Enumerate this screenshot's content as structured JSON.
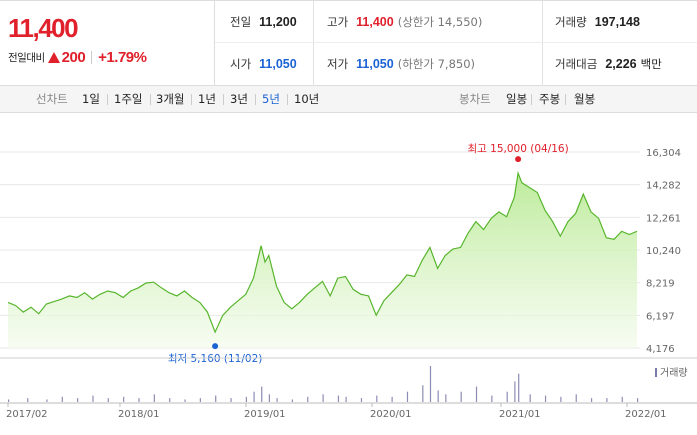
{
  "summary": {
    "price": "11,400",
    "change_label": "전일대비",
    "change_value": "200",
    "change_pct": "+1.79%",
    "colors": {
      "up": "#e0202b",
      "down": "#1b63d4"
    }
  },
  "stats": {
    "prev_close": {
      "label": "전일",
      "value": "11,200"
    },
    "high": {
      "label": "고가",
      "value": "11,400",
      "sub": "(상한가 14,550)"
    },
    "volume": {
      "label": "거래량",
      "value": "197,148"
    },
    "open": {
      "label": "시가",
      "value": "11,050"
    },
    "low": {
      "label": "저가",
      "value": "11,050",
      "sub": "(하한가 7,850)"
    },
    "trade_amount": {
      "label": "거래대금",
      "value": "2,226",
      "unit": "백만"
    }
  },
  "tabs": {
    "line_label": "선차트",
    "line_periods": [
      "1일",
      "1주일",
      "3개월",
      "1년",
      "3년",
      "5년",
      "10년"
    ],
    "active_period": "5년",
    "candle_label": "봉차트",
    "candle_periods": [
      "일봉",
      "주봉",
      "월봉"
    ]
  },
  "chart_data": {
    "type": "area",
    "y_ticks": [
      "16,304",
      "14,282",
      "12,261",
      "10,240",
      "8,219",
      "6,197",
      "4,176"
    ],
    "ylim": [
      4176,
      16304
    ],
    "x_ticks": [
      "2017/02",
      "2018/01",
      "2019/01",
      "2020/01",
      "2021/01",
      "2022/01"
    ],
    "max_annotation": "최고 15,000 (04/16)",
    "min_annotation": "최저 5,160 (11/02)",
    "volume_legend": "거래량",
    "area_color": "#8fd66a",
    "series": [
      {
        "values": [
          [
            0,
            7000
          ],
          [
            2,
            6800
          ],
          [
            4,
            6400
          ],
          [
            6,
            6700
          ],
          [
            8,
            6300
          ],
          [
            10,
            6900
          ],
          [
            12,
            7050
          ],
          [
            14,
            7200
          ],
          [
            16,
            7400
          ],
          [
            18,
            7300
          ],
          [
            20,
            7600
          ],
          [
            22,
            7200
          ],
          [
            24,
            7500
          ],
          [
            26,
            7700
          ],
          [
            28,
            7600
          ],
          [
            30,
            7300
          ],
          [
            32,
            7700
          ],
          [
            34,
            7900
          ],
          [
            36,
            8200
          ],
          [
            38,
            8250
          ],
          [
            40,
            7900
          ],
          [
            42,
            7600
          ],
          [
            44,
            7400
          ],
          [
            46,
            7700
          ],
          [
            48,
            7300
          ],
          [
            50,
            7000
          ],
          [
            52,
            6400
          ],
          [
            54,
            5160
          ],
          [
            56,
            6200
          ],
          [
            58,
            6700
          ],
          [
            60,
            7100
          ],
          [
            62,
            7500
          ],
          [
            64,
            8500
          ],
          [
            66,
            10500
          ],
          [
            67,
            9500
          ],
          [
            68,
            9900
          ],
          [
            70,
            8000
          ],
          [
            72,
            7000
          ],
          [
            74,
            6600
          ],
          [
            76,
            7000
          ],
          [
            78,
            7500
          ],
          [
            80,
            7900
          ],
          [
            82,
            8300
          ],
          [
            84,
            7400
          ],
          [
            86,
            8500
          ],
          [
            88,
            8600
          ],
          [
            90,
            7800
          ],
          [
            92,
            7500
          ],
          [
            94,
            7400
          ],
          [
            96,
            6200
          ],
          [
            98,
            7100
          ],
          [
            100,
            7600
          ],
          [
            102,
            8100
          ],
          [
            104,
            8700
          ],
          [
            106,
            8600
          ],
          [
            108,
            9600
          ],
          [
            110,
            10400
          ],
          [
            112,
            9100
          ],
          [
            114,
            9900
          ],
          [
            116,
            10300
          ],
          [
            118,
            10400
          ],
          [
            120,
            11300
          ],
          [
            122,
            12000
          ],
          [
            124,
            11500
          ],
          [
            126,
            12200
          ],
          [
            128,
            12600
          ],
          [
            130,
            12300
          ],
          [
            132,
            13500
          ],
          [
            133,
            15000
          ],
          [
            134,
            14400
          ],
          [
            136,
            14100
          ],
          [
            138,
            13800
          ],
          [
            140,
            12700
          ],
          [
            142,
            12000
          ],
          [
            144,
            11100
          ],
          [
            146,
            12000
          ],
          [
            148,
            12500
          ],
          [
            150,
            13700
          ],
          [
            152,
            12600
          ],
          [
            154,
            12200
          ],
          [
            156,
            11000
          ],
          [
            158,
            10900
          ],
          [
            160,
            11400
          ],
          [
            162,
            11200
          ],
          [
            164,
            11400
          ]
        ]
      },
      {
        "name": "거래량",
        "values": [
          [
            0,
            2
          ],
          [
            5,
            3
          ],
          [
            10,
            2
          ],
          [
            14,
            4
          ],
          [
            18,
            3
          ],
          [
            22,
            5
          ],
          [
            26,
            3
          ],
          [
            30,
            4
          ],
          [
            34,
            3
          ],
          [
            38,
            6
          ],
          [
            42,
            3
          ],
          [
            46,
            2
          ],
          [
            50,
            3
          ],
          [
            54,
            5
          ],
          [
            58,
            3
          ],
          [
            62,
            4
          ],
          [
            64,
            8
          ],
          [
            66,
            12
          ],
          [
            68,
            6
          ],
          [
            70,
            3
          ],
          [
            74,
            2
          ],
          [
            78,
            4
          ],
          [
            82,
            6
          ],
          [
            86,
            5
          ],
          [
            88,
            4
          ],
          [
            92,
            3
          ],
          [
            96,
            5
          ],
          [
            100,
            4
          ],
          [
            104,
            8
          ],
          [
            108,
            13
          ],
          [
            110,
            28
          ],
          [
            112,
            9
          ],
          [
            114,
            6
          ],
          [
            118,
            8
          ],
          [
            122,
            12
          ],
          [
            126,
            5
          ],
          [
            130,
            8
          ],
          [
            132,
            16
          ],
          [
            133,
            22
          ],
          [
            136,
            6
          ],
          [
            140,
            5
          ],
          [
            144,
            4
          ],
          [
            148,
            6
          ],
          [
            152,
            3
          ],
          [
            156,
            3
          ],
          [
            160,
            4
          ],
          [
            164,
            3
          ]
        ]
      }
    ]
  }
}
